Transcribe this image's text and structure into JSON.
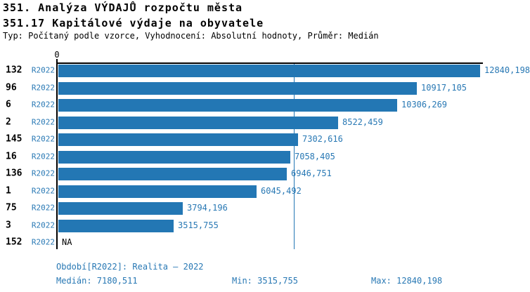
{
  "header": {
    "title_line1": "351. Analýza VÝDAJŮ rozpočtu města",
    "title_line2": "351.17 Kapitálové výdaje na obyvatele",
    "subtitle": "Typ: Počítaný podle vzorce, Vyhodnocení: Absolutní hodnoty, Průměr: Medián"
  },
  "chart_data": {
    "type": "bar",
    "orientation": "horizontal",
    "title": "351.17 Kapitálové výdaje na obyvatele",
    "axis": {
      "zero_label": "0",
      "xlim": [
        0,
        12840.198
      ],
      "gridlines": false
    },
    "legend": "none",
    "rows": [
      {
        "id": "132",
        "period": "R2022",
        "value": 12840.198,
        "label": "12840,198"
      },
      {
        "id": "96",
        "period": "R2022",
        "value": 10917.105,
        "label": "10917,105"
      },
      {
        "id": "6",
        "period": "R2022",
        "value": 10306.269,
        "label": "10306,269"
      },
      {
        "id": "2",
        "period": "R2022",
        "value": 8522.459,
        "label": "8522,459"
      },
      {
        "id": "145",
        "period": "R2022",
        "value": 7302.616,
        "label": "7302,616"
      },
      {
        "id": "16",
        "period": "R2022",
        "value": 7058.405,
        "label": "7058,405"
      },
      {
        "id": "136",
        "period": "R2022",
        "value": 6946.751,
        "label": "6946,751"
      },
      {
        "id": "1",
        "period": "R2022",
        "value": 6045.492,
        "label": "6045,492"
      },
      {
        "id": "75",
        "period": "R2022",
        "value": 3794.196,
        "label": "3794,196"
      },
      {
        "id": "3",
        "period": "R2022",
        "value": 3515.755,
        "label": "3515,755"
      },
      {
        "id": "152",
        "period": "R2022",
        "value": null,
        "label": "NA"
      }
    ],
    "median_value": 7180.511,
    "stats": {
      "median": 7180.511,
      "min": 3515.755,
      "max": 12840.198
    },
    "colors": {
      "bar": "#2377b4",
      "blue_text": "#2878b4",
      "axis": "#000000",
      "median_line": "#2377b4"
    }
  },
  "footer": {
    "period_line": "Období[R2022]: Realita – 2022",
    "median": "Medián: 7180,511",
    "min": "Min: 3515,755",
    "max": "Max: 12840,198"
  }
}
